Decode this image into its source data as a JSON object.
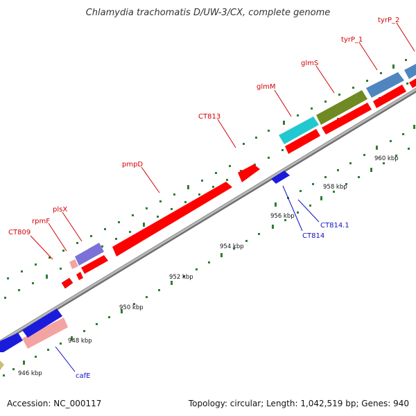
{
  "title": "Chlamydia trachomatis D/UW-3/CX, complete genome",
  "footer": {
    "accession": "Accession: NC_000117",
    "summary": "Topology: circular; Length: 1,042,519 bp; Genes: 940"
  },
  "colors": {
    "backbone": "#9a9a9a",
    "tick": "#2e7d32",
    "forward_label": "#d40000",
    "reverse_label": "#1010c0"
  },
  "genes": [
    {
      "name": "CT809",
      "strand": "forward",
      "color": "#ff0000",
      "label_color": "#d40000"
    },
    {
      "name": "rpmF",
      "strand": "forward",
      "color": "#f4a3a3",
      "label_color": "#d40000"
    },
    {
      "name": "plsX",
      "strand": "forward",
      "color": "#7b72d8",
      "label_color": "#d40000"
    },
    {
      "name": "pmpD",
      "strand": "forward",
      "color": "#ff0000",
      "label_color": "#d40000"
    },
    {
      "name": "CT813",
      "strand": "forward",
      "color": "#ff0000",
      "label_color": "#d40000"
    },
    {
      "name": "glmM",
      "strand": "forward",
      "color": "#22c8cf",
      "label_color": "#d40000"
    },
    {
      "name": "glmS",
      "strand": "forward",
      "color": "#6f8a22",
      "label_color": "#d40000"
    },
    {
      "name": "tyrP_1",
      "strand": "forward",
      "color": "#4f86c0",
      "label_color": "#d40000"
    },
    {
      "name": "tyrP_2",
      "strand": "forward",
      "color": "#4f86c0",
      "label_color": "#d40000"
    },
    {
      "name": "CT814",
      "strand": "reverse",
      "color": "#1b1bdc",
      "label_color": "#1010c0"
    },
    {
      "name": "CT814.1",
      "strand": "reverse",
      "color": "#1b1bdc",
      "label_color": "#1010c0"
    },
    {
      "name": "cafE",
      "strand": "reverse",
      "color": "#f4a3a3",
      "label_color": "#1010c0"
    }
  ],
  "ticks": {
    "labels": [
      "946 kbp",
      "948 kbp",
      "950 kbp",
      "952 kbp",
      "954 kbp",
      "956 kbp",
      "958 kbp",
      "960 kbp"
    ]
  }
}
